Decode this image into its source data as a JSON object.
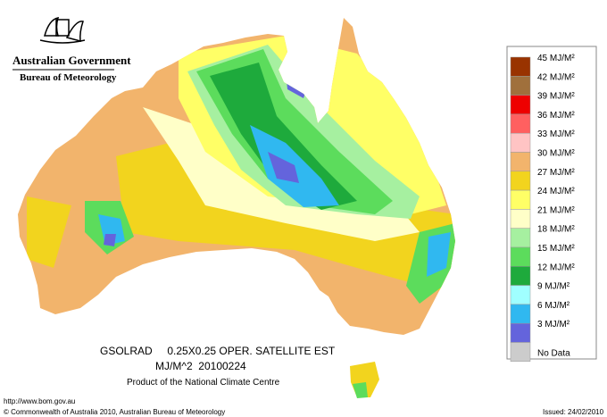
{
  "header": {
    "government": "Australian Government",
    "agency": "Bureau of Meteorology"
  },
  "legend": {
    "items": [
      {
        "label": "45 MJ/M²",
        "color": "#993300"
      },
      {
        "label": "42 MJ/M²",
        "color": "#a0703c"
      },
      {
        "label": "39 MJ/M²",
        "color": "#ee0000"
      },
      {
        "label": "36 MJ/M²",
        "color": "#ff6060"
      },
      {
        "label": "33 MJ/M²",
        "color": "#ffc4c4"
      },
      {
        "label": "30 MJ/M²",
        "color": "#f2b46c"
      },
      {
        "label": "27 MJ/M²",
        "color": "#f2d41e"
      },
      {
        "label": "24 MJ/M²",
        "color": "#ffff66"
      },
      {
        "label": "21 MJ/M²",
        "color": "#ffffc8"
      },
      {
        "label": "18 MJ/M²",
        "color": "#a6f0a0"
      },
      {
        "label": "15 MJ/M²",
        "color": "#5cdc5c"
      },
      {
        "label": "12 MJ/M²",
        "color": "#1eaa3c"
      },
      {
        "label": "9 MJ/M²",
        "color": "#a0ffff"
      },
      {
        "label": "6 MJ/M²",
        "color": "#30b8f0"
      },
      {
        "label": "3 MJ/M²",
        "color": "#6464dc"
      },
      {
        "label": "No Data",
        "color": "#cccccc"
      }
    ]
  },
  "caption": {
    "line1": "GSOLRAD     0.25X0.25 OPER. SATELLITE EST",
    "line2": "MJ/M^2  20100224",
    "line3": "Product of the National Climate Centre"
  },
  "footer": {
    "url": "http://www.bom.gov.au",
    "copyright": "© Commonwealth of Australia 2010, Australian Bureau of Meteorology",
    "issued": "Issued: 24/02/2010"
  }
}
